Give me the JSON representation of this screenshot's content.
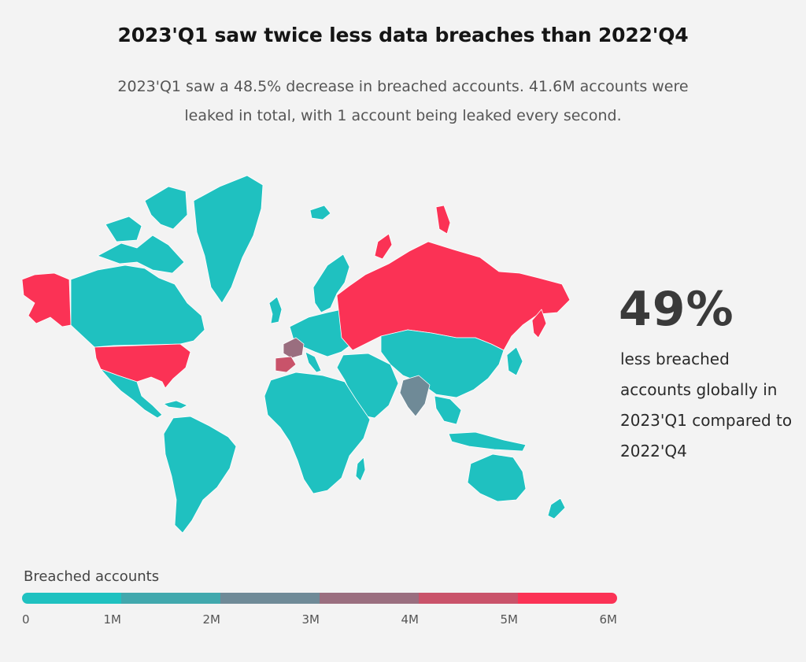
{
  "header": {
    "title": "2023'Q1 saw twice less data breaches than 2022'Q4",
    "subtitle": "2023'Q1 saw a 48.5% decrease in breached accounts. 41.6M accounts were leaked in total, with 1 account being leaked every second."
  },
  "stat": {
    "value": "49%",
    "description": "less breached accounts globally in 2023'Q1 compared to 2022'Q4"
  },
  "legend": {
    "title": "Breached accounts",
    "ticks": [
      "0",
      "1M",
      "2M",
      "3M",
      "4M",
      "5M",
      "6M"
    ],
    "colors": [
      "#1fc1c0",
      "#41a8ad",
      "#6f8a97",
      "#9a6e7f",
      "#c9536a",
      "#fb3255"
    ]
  },
  "map_data": {
    "scale": "breached accounts per country",
    "highlighted": [
      {
        "region": "Russia",
        "color": "#fb3255"
      },
      {
        "region": "United States",
        "color": "#fb3255"
      },
      {
        "region": "Spain",
        "color": "#c9536a"
      },
      {
        "region": "France",
        "color": "#9a6e7f"
      },
      {
        "region": "India",
        "color": "#6f8a97"
      }
    ],
    "default_color": "#1fc1c0"
  }
}
